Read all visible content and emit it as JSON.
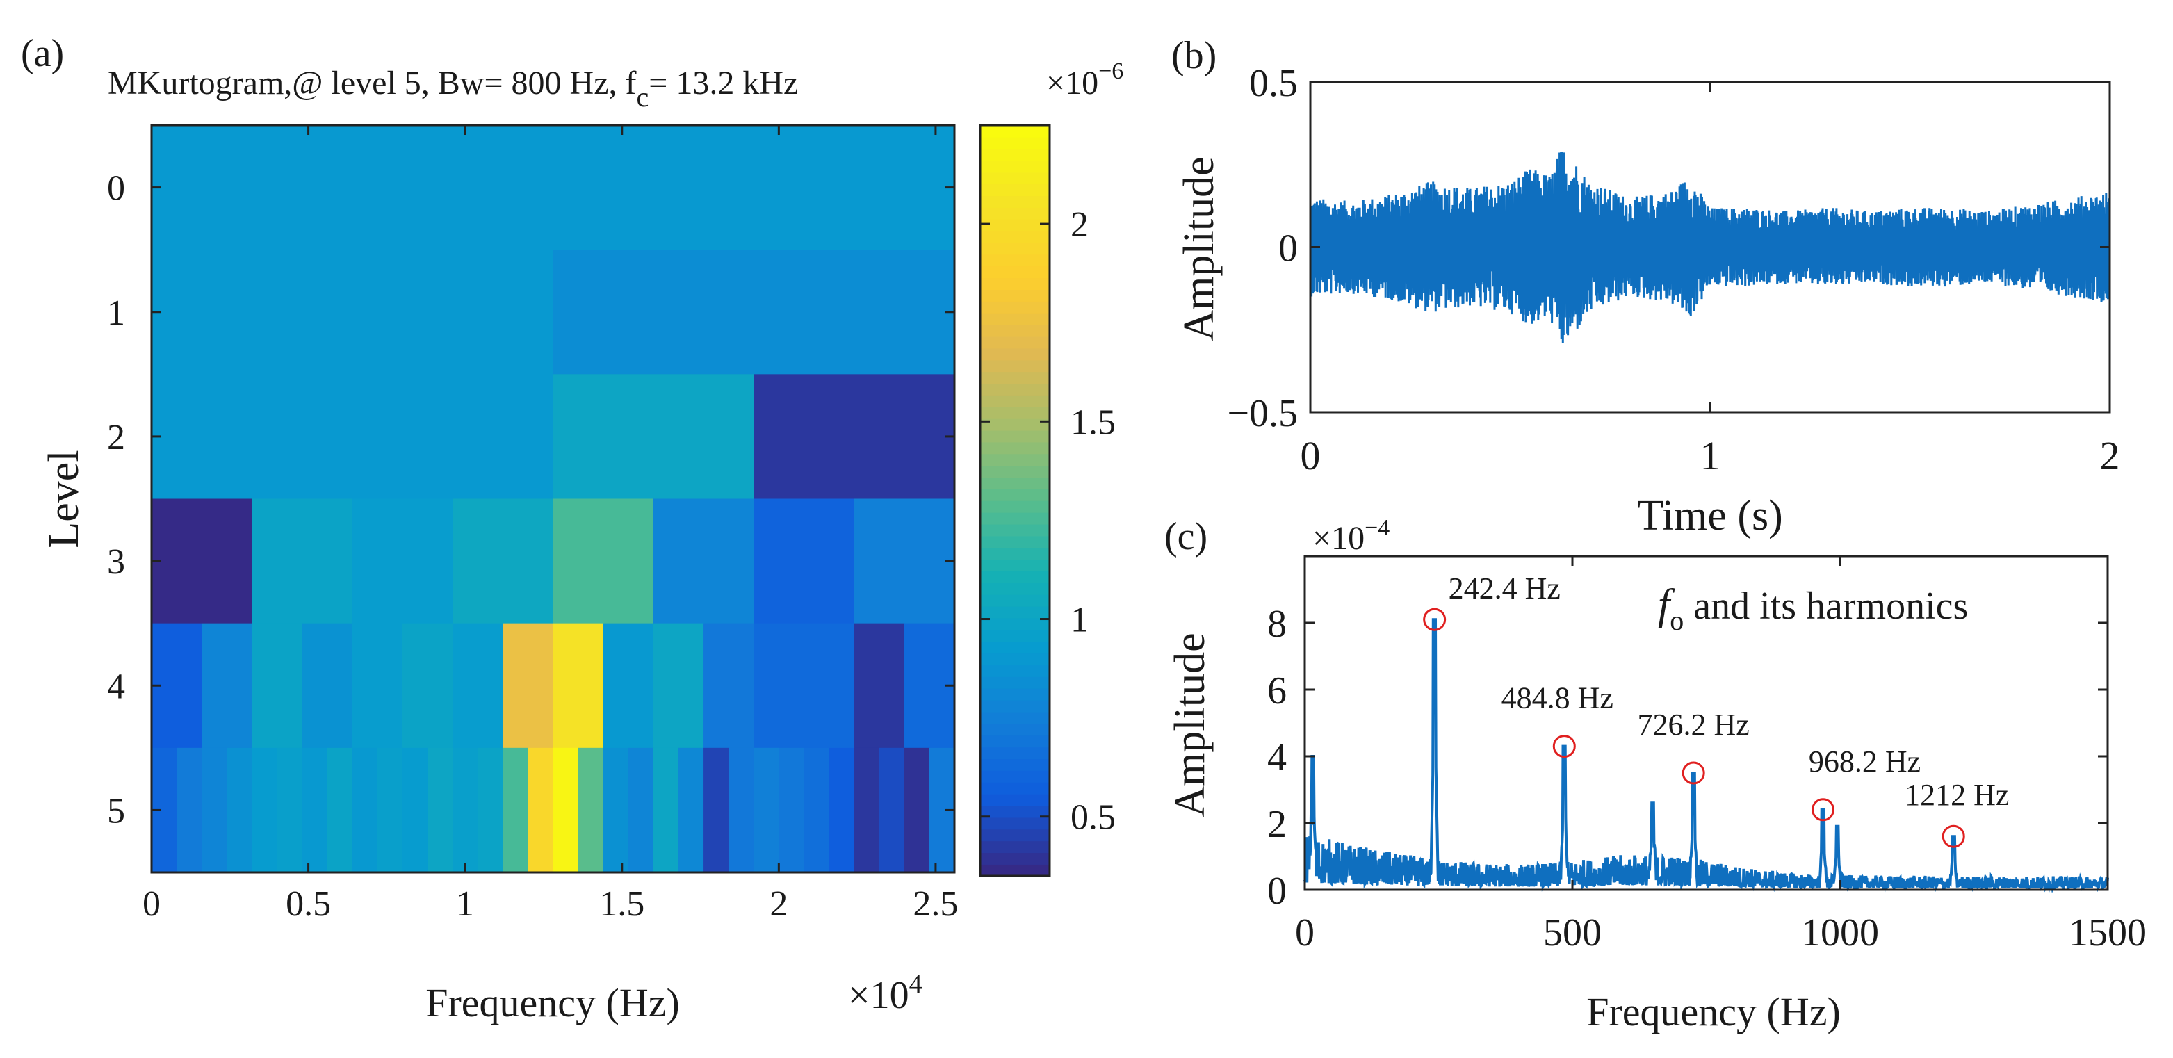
{
  "chart_data": [
    {
      "id": "a",
      "panel_label": "(a)",
      "type": "heatmap",
      "title": "MKurtogram,@ level 5, Bw= 800 Hz, f",
      "title_sub": "c",
      "title_tail": "= 13.2 kHz",
      "xlabel": "Frequency (Hz)",
      "x_exponent": "×10",
      "x_exponent_power": "4",
      "ylabel": "Level",
      "xlim": [
        0,
        2.56
      ],
      "x_scale_note": "x axis in units of 1e4 Hz",
      "xticks": [
        0,
        0.5,
        1,
        1.5,
        2,
        2.5
      ],
      "xticklabels": [
        "0",
        "0.5",
        "1",
        "1.5",
        "2",
        "2.5"
      ],
      "levels": [
        0,
        1,
        2,
        3,
        4,
        5
      ],
      "yticklabels": [
        "0",
        "1",
        "2",
        "3",
        "4",
        "5"
      ],
      "rows": [
        {
          "level": 0,
          "cells": [
            [
              0,
              2.56,
              0.9
            ]
          ]
        },
        {
          "level": 1,
          "cells": [
            [
              0,
              1.28,
              0.9
            ],
            [
              1.28,
              2.56,
              0.83
            ]
          ]
        },
        {
          "level": 2,
          "cells": [
            [
              0,
              1.28,
              0.9
            ],
            [
              1.28,
              1.92,
              1.0
            ],
            [
              1.92,
              2.56,
              0.4
            ]
          ]
        },
        {
          "level": 3,
          "cells": [
            [
              0,
              0.32,
              0.35
            ],
            [
              0.32,
              0.64,
              0.98
            ],
            [
              0.64,
              0.96,
              0.93
            ],
            [
              0.96,
              1.28,
              1.02
            ],
            [
              1.28,
              1.6,
              1.25
            ],
            [
              1.6,
              1.92,
              0.78
            ],
            [
              1.92,
              2.24,
              0.58
            ],
            [
              2.24,
              2.56,
              0.75
            ]
          ]
        },
        {
          "level": 4,
          "cells": [
            [
              0,
              0.16,
              0.55
            ],
            [
              0.16,
              0.32,
              0.78
            ],
            [
              0.32,
              0.48,
              0.98
            ],
            [
              0.48,
              0.64,
              0.86
            ],
            [
              0.64,
              0.8,
              0.93
            ],
            [
              0.8,
              0.96,
              0.98
            ],
            [
              0.96,
              1.12,
              0.93
            ],
            [
              1.12,
              1.28,
              1.75
            ],
            [
              1.28,
              1.44,
              2.05
            ],
            [
              1.44,
              1.6,
              0.9
            ],
            [
              1.6,
              1.76,
              1.0
            ],
            [
              1.76,
              1.92,
              0.7
            ],
            [
              1.92,
              2.08,
              0.62
            ],
            [
              2.08,
              2.24,
              0.62
            ],
            [
              2.24,
              2.4,
              0.4
            ],
            [
              2.4,
              2.56,
              0.62
            ]
          ]
        },
        {
          "level": 5,
          "cells": [
            [
              0,
              0.08,
              0.6
            ],
            [
              0.08,
              0.16,
              0.72
            ],
            [
              0.16,
              0.24,
              0.78
            ],
            [
              0.24,
              0.32,
              0.85
            ],
            [
              0.32,
              0.4,
              0.92
            ],
            [
              0.4,
              0.48,
              0.95
            ],
            [
              0.48,
              0.56,
              0.9
            ],
            [
              0.56,
              0.64,
              0.98
            ],
            [
              0.64,
              0.72,
              0.9
            ],
            [
              0.72,
              0.8,
              0.95
            ],
            [
              0.8,
              0.88,
              0.92
            ],
            [
              0.88,
              0.96,
              1.0
            ],
            [
              0.96,
              1.04,
              0.95
            ],
            [
              1.04,
              1.12,
              0.98
            ],
            [
              1.12,
              1.2,
              1.25
            ],
            [
              1.2,
              1.28,
              1.95
            ],
            [
              1.28,
              1.36,
              2.2
            ],
            [
              1.36,
              1.44,
              1.3
            ],
            [
              1.44,
              1.52,
              0.85
            ],
            [
              1.52,
              1.6,
              0.78
            ],
            [
              1.6,
              1.68,
              1.0
            ],
            [
              1.68,
              1.76,
              0.8
            ],
            [
              1.76,
              1.84,
              0.45
            ],
            [
              1.84,
              1.92,
              0.7
            ],
            [
              1.92,
              2.0,
              0.75
            ],
            [
              2.0,
              2.08,
              0.7
            ],
            [
              2.08,
              2.16,
              0.65
            ],
            [
              2.16,
              2.24,
              0.55
            ],
            [
              2.24,
              2.32,
              0.4
            ],
            [
              2.32,
              2.4,
              0.48
            ],
            [
              2.4,
              2.48,
              0.38
            ],
            [
              2.48,
              2.56,
              0.72
            ]
          ]
        }
      ],
      "colorbar": {
        "colormap": "parula",
        "clim": [
          0.35,
          2.25
        ],
        "ticks": [
          0.5,
          1,
          1.5,
          2
        ],
        "ticklabels": [
          "0.5",
          "1",
          "1.5",
          "2"
        ],
        "exponent": "×10",
        "exponent_power": "−6"
      }
    },
    {
      "id": "b",
      "panel_label": "(b)",
      "type": "line",
      "xlabel": "Time (s)",
      "ylabel": "Amplitude",
      "xlim": [
        0,
        2
      ],
      "ylim": [
        -0.5,
        0.5
      ],
      "xticks": [
        0,
        1,
        2
      ],
      "xticklabels": [
        "0",
        "1",
        "2"
      ],
      "yticks": [
        -0.5,
        0,
        0.5
      ],
      "yticklabels": [
        "−0.5",
        "0",
        "0.5"
      ],
      "envelope_time": [
        0,
        0.1,
        0.2,
        0.3,
        0.4,
        0.5,
        0.55,
        0.6,
        0.63,
        0.66,
        0.7,
        0.8,
        0.9,
        0.95,
        1.0,
        1.1,
        1.2,
        1.3,
        1.4,
        1.5,
        1.6,
        1.7,
        1.8,
        1.9,
        2.0
      ],
      "envelope_amplitude": [
        0.15,
        0.14,
        0.16,
        0.2,
        0.18,
        0.2,
        0.24,
        0.22,
        0.31,
        0.27,
        0.2,
        0.15,
        0.17,
        0.22,
        0.12,
        0.12,
        0.11,
        0.12,
        0.11,
        0.12,
        0.12,
        0.11,
        0.13,
        0.15,
        0.17
      ]
    },
    {
      "id": "c",
      "panel_label": "(c)",
      "type": "line",
      "xlabel": "Frequency (Hz)",
      "ylabel": "Amplitude",
      "xlim": [
        0,
        1500
      ],
      "ylim": [
        0,
        10
      ],
      "xticks": [
        0,
        500,
        1000,
        1500
      ],
      "xticklabels": [
        "0",
        "500",
        "1000",
        "1500"
      ],
      "yticks": [
        0,
        2,
        4,
        6,
        8
      ],
      "yticklabels": [
        "0",
        "2",
        "4",
        "6",
        "8"
      ],
      "y_exponent": "×10",
      "y_exponent_power": "−4",
      "peaks": [
        {
          "frequency": 242.4,
          "amplitude": 8.1,
          "label": "242.4 Hz"
        },
        {
          "frequency": 484.8,
          "amplitude": 4.3,
          "label": "484.8 Hz"
        },
        {
          "frequency": 726.2,
          "amplitude": 3.5,
          "label": "726.2 Hz"
        },
        {
          "frequency": 968.2,
          "amplitude": 2.4,
          "label": "968.2 Hz"
        },
        {
          "frequency": 1212,
          "amplitude": 1.6,
          "label": "1212 Hz"
        }
      ],
      "secondary_peaks": [
        {
          "frequency": 15,
          "amplitude": 4.0
        },
        {
          "frequency": 650,
          "amplitude": 2.6
        },
        {
          "frequency": 995,
          "amplitude": 1.9
        }
      ],
      "annotation_symbol": "f",
      "annotation_sub": "o",
      "annotation_text": " and its harmonics"
    }
  ]
}
